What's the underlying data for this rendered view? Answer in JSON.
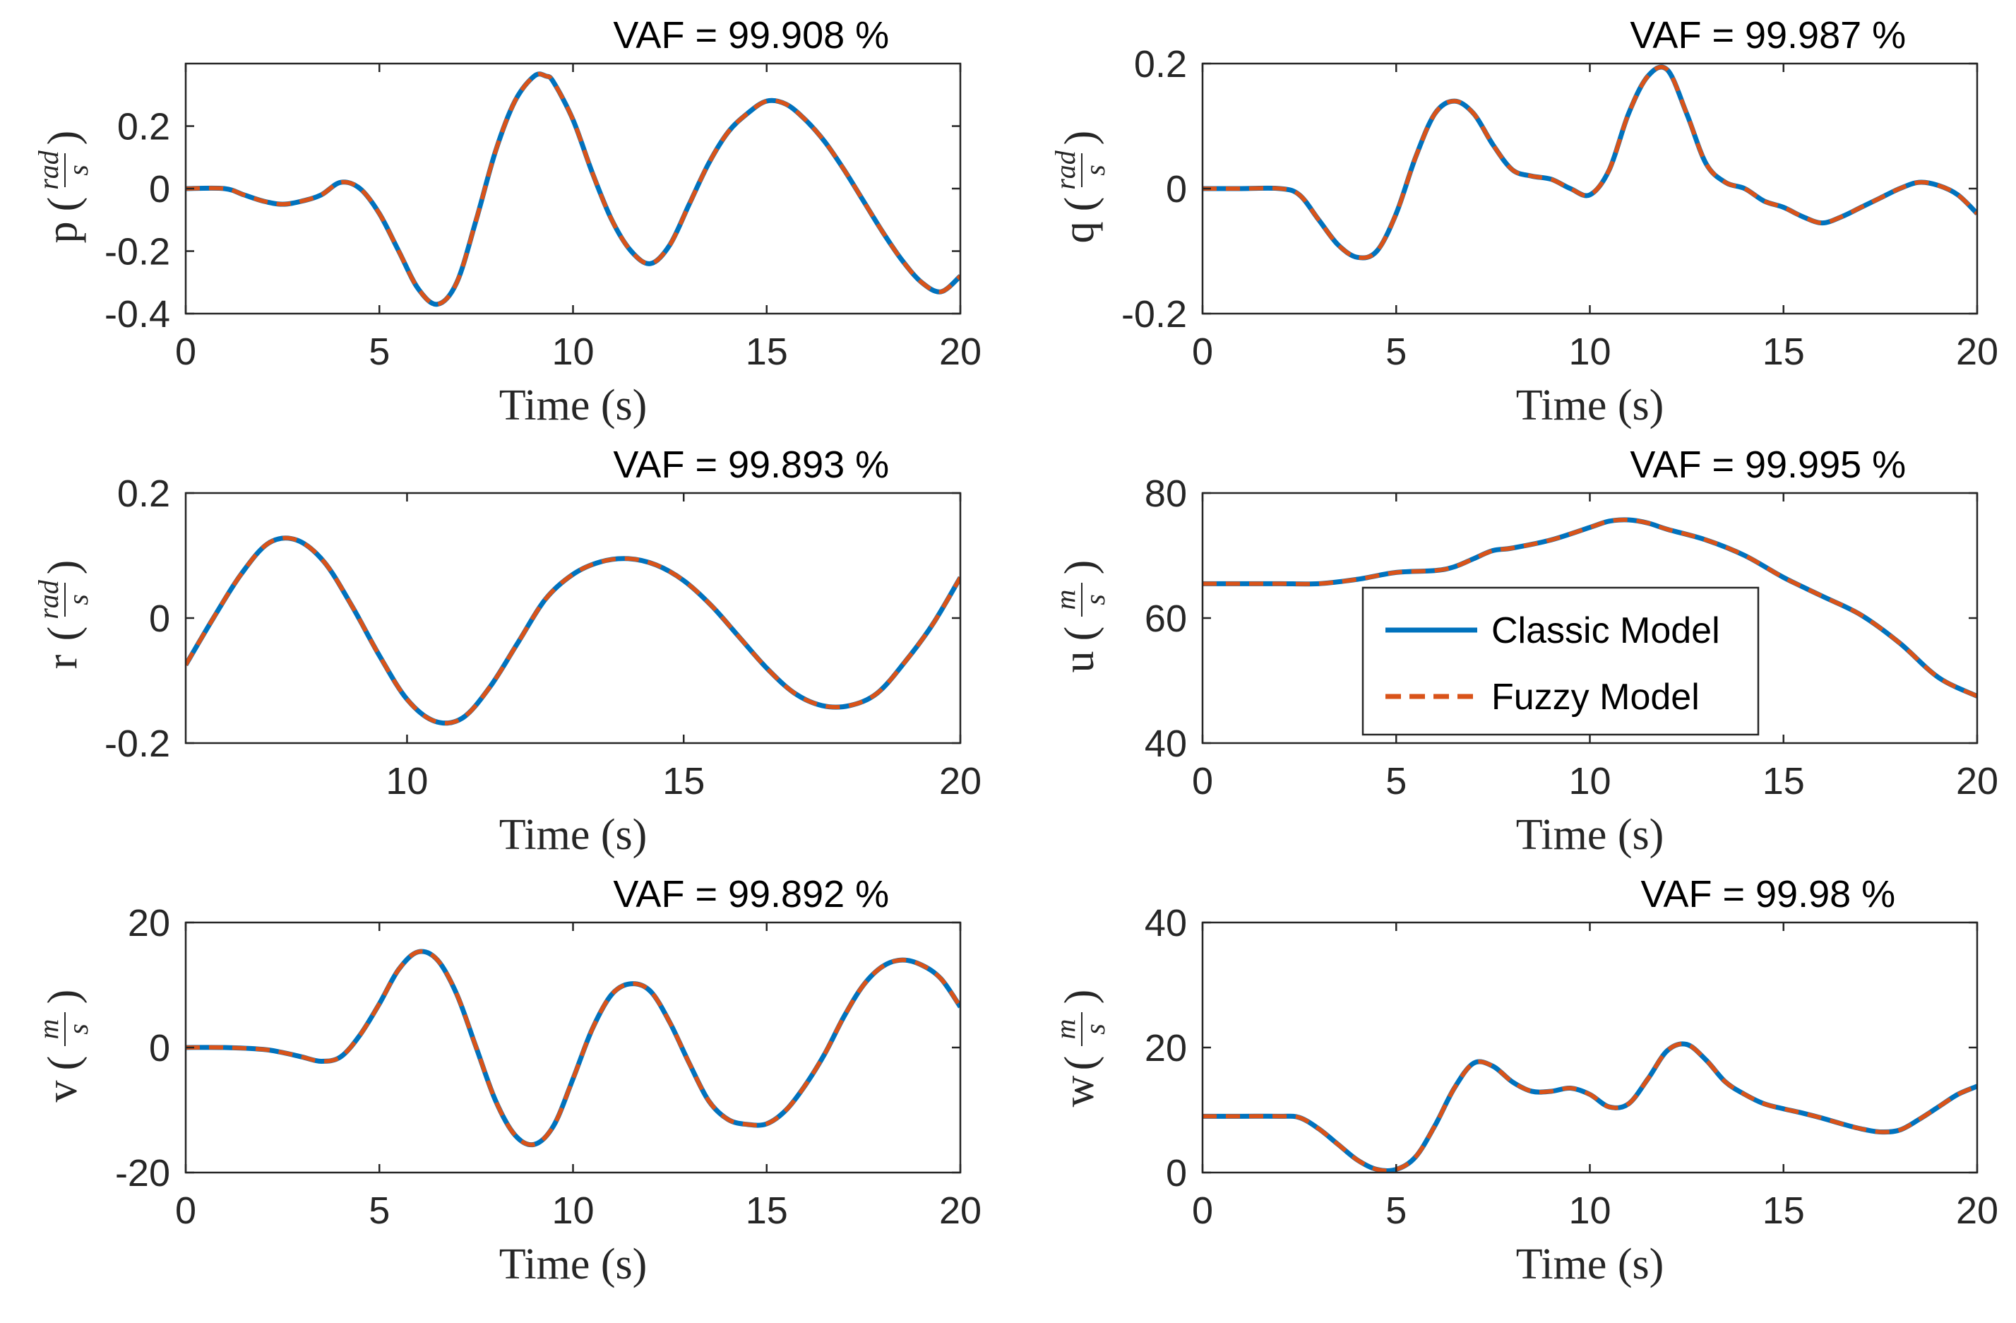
{
  "colors": {
    "classic": "#0072BD",
    "fuzzy": "#D95319",
    "axis": "#262626"
  },
  "legend": {
    "items": [
      "Classic Model",
      "Fuzzy Model"
    ]
  },
  "chart_data": [
    {
      "type": "line",
      "title": "VAF = 99.908 %",
      "xlabel": "Time (s)",
      "ylabel": {
        "var": "p",
        "num": "rad",
        "den": "s"
      },
      "xlim": [
        0,
        20
      ],
      "ylim": [
        -0.4,
        0.4
      ],
      "xticks": [
        0,
        5,
        10,
        15,
        20
      ],
      "yticks": [
        -0.4,
        -0.2,
        0,
        0.2
      ],
      "ytick_labels": [
        "-0.4",
        "-0.2",
        "0",
        "0.2"
      ],
      "x": [
        0,
        1,
        1.5,
        2,
        2.5,
        3,
        3.5,
        4,
        4.5,
        5,
        5.5,
        6,
        6.5,
        7,
        7.5,
        8,
        8.5,
        9,
        9.3,
        9.5,
        10,
        10.5,
        11,
        11.5,
        12,
        12.5,
        13,
        13.5,
        14,
        14.5,
        15,
        15.5,
        16,
        16.5,
        17,
        17.5,
        18,
        18.5,
        19,
        19.5,
        20
      ],
      "series": [
        {
          "name": "Classic Model",
          "values": [
            0,
            0,
            -0.02,
            -0.04,
            -0.05,
            -0.04,
            -0.02,
            0.02,
            0,
            -0.08,
            -0.2,
            -0.32,
            -0.37,
            -0.3,
            -0.1,
            0.12,
            0.28,
            0.36,
            0.36,
            0.34,
            0.22,
            0.05,
            -0.1,
            -0.2,
            -0.24,
            -0.18,
            -0.05,
            0.08,
            0.18,
            0.24,
            0.28,
            0.27,
            0.22,
            0.15,
            0.06,
            -0.04,
            -0.14,
            -0.23,
            -0.3,
            -0.33,
            -0.28
          ]
        },
        {
          "name": "Fuzzy Model",
          "values": [
            0,
            0,
            -0.02,
            -0.04,
            -0.05,
            -0.04,
            -0.02,
            0.02,
            0,
            -0.08,
            -0.2,
            -0.32,
            -0.37,
            -0.3,
            -0.1,
            0.12,
            0.28,
            0.36,
            0.36,
            0.34,
            0.22,
            0.05,
            -0.1,
            -0.2,
            -0.24,
            -0.18,
            -0.05,
            0.08,
            0.18,
            0.24,
            0.28,
            0.27,
            0.22,
            0.15,
            0.06,
            -0.04,
            -0.14,
            -0.23,
            -0.3,
            -0.33,
            -0.28
          ]
        }
      ]
    },
    {
      "type": "line",
      "title": "VAF = 99.987 %",
      "xlabel": "Time (s)",
      "ylabel": {
        "var": "q",
        "num": "rad",
        "den": "s"
      },
      "xlim": [
        0,
        20
      ],
      "ylim": [
        -0.2,
        0.2
      ],
      "xticks": [
        0,
        5,
        10,
        15,
        20
      ],
      "yticks": [
        -0.2,
        0,
        0.2
      ],
      "ytick_labels": [
        "-0.2",
        "0",
        "0.2"
      ],
      "x": [
        0,
        1,
        2,
        2.5,
        3,
        3.5,
        4,
        4.5,
        5,
        5.5,
        6,
        6.5,
        7,
        7.5,
        8,
        8.5,
        9,
        9.5,
        10,
        10.5,
        11,
        11.5,
        12,
        12.5,
        13,
        13.5,
        14,
        14.5,
        15,
        15.5,
        16,
        16.5,
        17,
        17.5,
        18,
        18.5,
        19,
        19.5,
        20
      ],
      "series": [
        {
          "name": "Classic Model",
          "values": [
            0,
            0,
            0,
            -0.01,
            -0.05,
            -0.09,
            -0.11,
            -0.1,
            -0.04,
            0.05,
            0.12,
            0.14,
            0.12,
            0.07,
            0.03,
            0.02,
            0.015,
            0.0,
            -0.01,
            0.03,
            0.12,
            0.18,
            0.19,
            0.12,
            0.04,
            0.01,
            0.0,
            -0.02,
            -0.03,
            -0.045,
            -0.055,
            -0.045,
            -0.03,
            -0.015,
            0.0,
            0.01,
            0.005,
            -0.01,
            -0.04
          ]
        },
        {
          "name": "Fuzzy Model",
          "values": [
            0,
            0,
            0,
            -0.01,
            -0.05,
            -0.09,
            -0.11,
            -0.1,
            -0.04,
            0.05,
            0.12,
            0.14,
            0.12,
            0.07,
            0.03,
            0.02,
            0.015,
            0.0,
            -0.01,
            0.03,
            0.12,
            0.18,
            0.19,
            0.12,
            0.04,
            0.01,
            0.0,
            -0.02,
            -0.03,
            -0.045,
            -0.055,
            -0.045,
            -0.03,
            -0.015,
            0.0,
            0.01,
            0.005,
            -0.01,
            -0.04
          ]
        }
      ]
    },
    {
      "type": "line",
      "title": "VAF = 99.893 %",
      "xlabel": "Time (s)",
      "ylabel": {
        "var": "r",
        "num": "rad",
        "den": "s"
      },
      "xlim": [
        6,
        20
      ],
      "ylim": [
        -0.2,
        0.2
      ],
      "xticks": [
        10,
        15,
        20
      ],
      "yticks": [
        -0.2,
        0,
        0.2
      ],
      "ytick_labels": [
        "-0.2",
        "0",
        "0.2"
      ],
      "x": [
        6,
        6.5,
        7,
        7.5,
        8,
        8.5,
        9,
        9.5,
        10,
        10.5,
        11,
        11.5,
        12,
        12.5,
        13,
        13.5,
        14,
        14.5,
        15,
        15.5,
        16,
        16.5,
        17,
        17.5,
        18,
        18.5,
        19,
        19.5,
        20
      ],
      "series": [
        {
          "name": "Classic Model",
          "values": [
            -0.075,
            0.0,
            0.07,
            0.12,
            0.125,
            0.09,
            0.02,
            -0.06,
            -0.13,
            -0.165,
            -0.16,
            -0.11,
            -0.04,
            0.03,
            0.07,
            0.09,
            0.095,
            0.085,
            0.06,
            0.02,
            -0.03,
            -0.08,
            -0.12,
            -0.14,
            -0.14,
            -0.12,
            -0.07,
            -0.01,
            0.065
          ]
        },
        {
          "name": "Fuzzy Model",
          "values": [
            -0.075,
            0.0,
            0.07,
            0.12,
            0.125,
            0.09,
            0.02,
            -0.06,
            -0.13,
            -0.165,
            -0.16,
            -0.11,
            -0.04,
            0.03,
            0.07,
            0.09,
            0.095,
            0.085,
            0.06,
            0.02,
            -0.03,
            -0.08,
            -0.12,
            -0.14,
            -0.14,
            -0.12,
            -0.07,
            -0.01,
            0.065
          ]
        }
      ]
    },
    {
      "type": "line",
      "title": "VAF = 99.995 %",
      "xlabel": "Time (s)",
      "ylabel": {
        "var": "u",
        "num": "m",
        "den": "s"
      },
      "xlim": [
        0,
        20
      ],
      "ylim": [
        40,
        80
      ],
      "xticks": [
        0,
        5,
        10,
        15,
        20
      ],
      "yticks": [
        40,
        60,
        80
      ],
      "ytick_labels": [
        "40",
        "60",
        "80"
      ],
      "x": [
        0,
        1,
        2,
        3,
        4,
        5,
        6,
        6.5,
        7,
        7.5,
        8,
        9,
        10,
        10.5,
        11,
        11.5,
        12,
        13,
        14,
        15,
        16,
        17,
        18,
        19,
        20
      ],
      "series": [
        {
          "name": "Classic Model",
          "values": [
            65.5,
            65.5,
            65.5,
            65.5,
            66.2,
            67.3,
            67.6,
            68.2,
            69.5,
            70.8,
            71.2,
            72.5,
            74.5,
            75.5,
            75.7,
            75.2,
            74.2,
            72.5,
            70,
            66.5,
            63.5,
            60.5,
            56,
            50.5,
            47.5
          ]
        },
        {
          "name": "Fuzzy Model",
          "values": [
            65.5,
            65.5,
            65.5,
            65.5,
            66.2,
            67.3,
            67.6,
            68.2,
            69.5,
            70.8,
            71.2,
            72.5,
            74.5,
            75.5,
            75.7,
            75.2,
            74.2,
            72.5,
            70,
            66.5,
            63.5,
            60.5,
            56,
            50.5,
            47.5
          ]
        }
      ]
    },
    {
      "type": "line",
      "title": "VAF = 99.892 %",
      "xlabel": "Time (s)",
      "ylabel": {
        "var": "v",
        "num": "m",
        "den": "s"
      },
      "xlim": [
        0,
        20
      ],
      "ylim": [
        -20,
        20
      ],
      "xticks": [
        0,
        5,
        10,
        15,
        20
      ],
      "yticks": [
        -20,
        0,
        20
      ],
      "ytick_labels": [
        "-20",
        "0",
        "20"
      ],
      "x": [
        0,
        1,
        2,
        2.5,
        3,
        3.5,
        4,
        4.5,
        5,
        5.5,
        6,
        6.5,
        7,
        7.5,
        8,
        8.5,
        9,
        9.5,
        10,
        10.5,
        11,
        11.5,
        12,
        12.5,
        13,
        13.5,
        14,
        14.5,
        15,
        15.5,
        16,
        16.5,
        17,
        17.5,
        18,
        18.5,
        19,
        19.5,
        20
      ],
      "series": [
        {
          "name": "Classic Model",
          "values": [
            0,
            0,
            -0.3,
            -0.8,
            -1.5,
            -2.2,
            -1.5,
            2,
            7,
            12.5,
            15.3,
            14,
            8.5,
            0,
            -8.5,
            -14,
            -15.5,
            -12.5,
            -5,
            3,
            8.5,
            10.2,
            9,
            4,
            -2.5,
            -8.5,
            -11.5,
            -12.3,
            -12.2,
            -10,
            -6,
            -1,
            5,
            10,
            13,
            14,
            13.2,
            11,
            6.5
          ]
        },
        {
          "name": "Fuzzy Model",
          "values": [
            0,
            0,
            -0.3,
            -0.8,
            -1.5,
            -2.2,
            -1.5,
            2,
            7,
            12.5,
            15.3,
            14,
            8.5,
            0,
            -8.5,
            -14,
            -15.5,
            -12.5,
            -5,
            3,
            8.5,
            10.2,
            9,
            4,
            -2.5,
            -8.5,
            -11.5,
            -12.3,
            -12.2,
            -10,
            -6,
            -1,
            5,
            10,
            13,
            14,
            13.2,
            11,
            6.5
          ]
        }
      ]
    },
    {
      "type": "line",
      "title": "VAF = 99.98 %",
      "xlabel": "Time (s)",
      "ylabel": {
        "var": "w",
        "num": "m",
        "den": "s"
      },
      "xlim": [
        0,
        20
      ],
      "ylim": [
        0,
        40
      ],
      "xticks": [
        0,
        5,
        10,
        15,
        20
      ],
      "yticks": [
        0,
        20,
        40
      ],
      "ytick_labels": [
        "0",
        "20",
        "40"
      ],
      "x": [
        0,
        1,
        2,
        2.5,
        3,
        3.5,
        4,
        4.5,
        5,
        5.5,
        6,
        6.5,
        7,
        7.5,
        8,
        8.5,
        9,
        9.5,
        10,
        10.5,
        11,
        11.5,
        12,
        12.5,
        13,
        13.5,
        14,
        14.5,
        15,
        15.5,
        16,
        16.5,
        17,
        17.5,
        18,
        18.5,
        19,
        19.5,
        20
      ],
      "series": [
        {
          "name": "Classic Model",
          "values": [
            9,
            9,
            9,
            8.8,
            7,
            4.5,
            2,
            0.5,
            0.5,
            2.5,
            7.5,
            13.5,
            17.5,
            17,
            14.5,
            13,
            13,
            13.5,
            12.5,
            10.5,
            11,
            15,
            19.5,
            20.5,
            18,
            14.5,
            12.5,
            11,
            10.2,
            9.5,
            8.7,
            7.8,
            7,
            6.5,
            6.8,
            8.5,
            10.5,
            12.5,
            13.8
          ]
        },
        {
          "name": "Fuzzy Model",
          "values": [
            9,
            9,
            9,
            8.8,
            7,
            4.5,
            2,
            0.5,
            0.5,
            2.5,
            7.5,
            13.5,
            17.5,
            17,
            14.5,
            13,
            13,
            13.5,
            12.5,
            10.5,
            11,
            15,
            19.5,
            20.5,
            18,
            14.5,
            12.5,
            11,
            10.2,
            9.5,
            8.7,
            7.8,
            7,
            6.5,
            6.8,
            8.5,
            10.5,
            12.5,
            13.8
          ]
        }
      ]
    }
  ]
}
